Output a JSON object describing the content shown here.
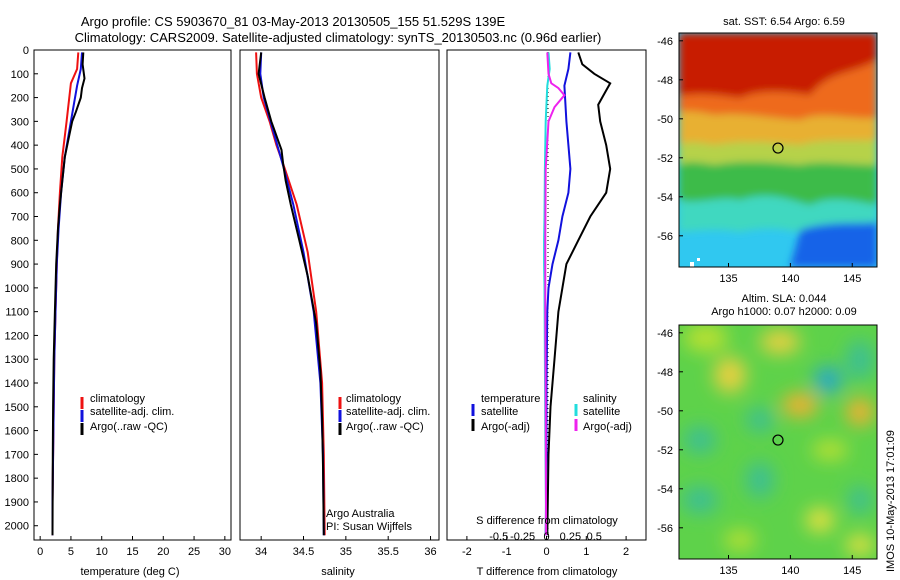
{
  "titles": {
    "line1": "Argo profile: CS 5903670_81 03-May-2013 20130505_155 51.529S 139E",
    "line2": "Climatology: CARS2009. Satellite-adjusted climatology: synTS_20130503.nc (0.96d earlier)"
  },
  "colors": {
    "climatology": "#ee1111",
    "satellite": "#1111dd",
    "argo": "#000000",
    "sal_satellite": "#22dddd",
    "sal_argo": "#ee22ee"
  },
  "chart_data": [
    {
      "id": "temperature",
      "type": "line",
      "xlabel": "temperature (deg C)",
      "ylabel": "",
      "xlim": [
        -1,
        31
      ],
      "ylim": [
        2060,
        0
      ],
      "xticks": [
        "0",
        "5",
        "10",
        "15",
        "20",
        "25",
        "30"
      ],
      "xtick_values": [
        0,
        5,
        10,
        15,
        20,
        25,
        30
      ],
      "yticks": [
        "0",
        "100",
        "200",
        "300",
        "400",
        "500",
        "600",
        "700",
        "800",
        "900",
        "1000",
        "1100",
        "1200",
        "1300",
        "1400",
        "1500",
        "1600",
        "1700",
        "1800",
        "1900",
        "2000"
      ],
      "ytick_values": [
        0,
        100,
        200,
        300,
        400,
        500,
        600,
        700,
        800,
        900,
        1000,
        1100,
        1200,
        1300,
        1400,
        1500,
        1600,
        1700,
        1800,
        1900,
        2000
      ],
      "legend": [
        "climatology",
        "satellite-adj. clim.",
        "Argo(..raw -QC)"
      ],
      "series": [
        {
          "name": "climatology",
          "color_key": "climatology",
          "x": [
            6.2,
            6.0,
            5.0,
            4.3,
            3.6,
            3.2,
            2.9,
            2.7,
            2.5,
            2.3,
            2.2,
            2.1,
            2.0,
            2.0
          ],
          "y": [
            10,
            80,
            140,
            300,
            450,
            600,
            750,
            900,
            1100,
            1300,
            1500,
            1700,
            1900,
            2040
          ]
        },
        {
          "name": "satellite-adj. clim.",
          "color_key": "satellite",
          "x": [
            6.8,
            6.6,
            6.0,
            5.0,
            4.0,
            3.4,
            3.0,
            2.7,
            2.5,
            2.3,
            2.2,
            2.1,
            2.0,
            2.0
          ],
          "y": [
            10,
            80,
            150,
            300,
            450,
            600,
            750,
            900,
            1100,
            1300,
            1500,
            1700,
            1900,
            2040
          ]
        },
        {
          "name": "Argo(..raw -QC)",
          "color_key": "argo",
          "x": [
            7.0,
            6.9,
            7.2,
            6.8,
            6.6,
            5.8,
            5.2,
            4.8,
            4.0,
            3.6,
            3.2,
            2.9,
            2.6,
            2.4,
            2.2,
            2.1,
            2.05,
            2.0
          ],
          "y": [
            10,
            60,
            120,
            160,
            200,
            260,
            300,
            350,
            450,
            550,
            650,
            750,
            900,
            1100,
            1300,
            1500,
            1700,
            2040
          ]
        }
      ]
    },
    {
      "id": "salinity",
      "type": "line",
      "xlabel": "salinity",
      "xlim": [
        33.75,
        36.1
      ],
      "ylim": [
        2060,
        0
      ],
      "xticks": [
        "34",
        "34.5",
        "35",
        "35.5",
        "36"
      ],
      "xtick_values": [
        34,
        34.5,
        35,
        35.5,
        36
      ],
      "legend": [
        "climatology",
        "satellite-adj. clim.",
        "Argo(..raw -QC)"
      ],
      "annotations": [
        "Argo Australia",
        "PI: Susan Wijffels"
      ],
      "series": [
        {
          "name": "climatology",
          "color_key": "climatology",
          "x": [
            33.94,
            33.95,
            34.0,
            34.1,
            34.18,
            34.28,
            34.42,
            34.55,
            34.65,
            34.72,
            34.74,
            34.75
          ],
          "y": [
            10,
            100,
            200,
            300,
            400,
            500,
            650,
            850,
            1100,
            1400,
            1700,
            2040
          ]
        },
        {
          "name": "satellite-adj. clim.",
          "color_key": "satellite",
          "x": [
            34.0,
            33.99,
            34.03,
            34.11,
            34.19,
            34.27,
            34.38,
            34.5,
            34.62,
            34.7,
            34.73,
            34.74
          ],
          "y": [
            10,
            100,
            200,
            300,
            400,
            500,
            650,
            850,
            1100,
            1400,
            1700,
            2040
          ]
        },
        {
          "name": "Argo(..raw -QC)",
          "color_key": "argo",
          "x": [
            34.0,
            33.97,
            34.04,
            34.12,
            34.2,
            34.24,
            34.26,
            34.29,
            34.35,
            34.45,
            34.55,
            34.65,
            34.7,
            34.72,
            34.73,
            34.74
          ],
          "y": [
            10,
            100,
            200,
            300,
            380,
            420,
            480,
            550,
            650,
            800,
            950,
            1150,
            1350,
            1550,
            1750,
            2040
          ]
        }
      ]
    },
    {
      "id": "differences",
      "type": "line",
      "xlabel": "T difference from climatology",
      "xlabel_top": "S difference from climatology",
      "xlim": [
        -2.5,
        2.5
      ],
      "ylim": [
        2060,
        0
      ],
      "xticks": [
        "-2",
        "-1",
        "0",
        "1",
        "2"
      ],
      "xtick_values": [
        -2,
        -1,
        0,
        1,
        2
      ],
      "sticks": [
        "-0.5",
        "-0.25",
        "0",
        "0.25",
        "0.5"
      ],
      "stick_values": [
        -0.5,
        -0.25,
        0,
        0.25,
        0.5
      ],
      "legend_left_title": "temperature",
      "legend_right_title": "salinity",
      "legend_left": [
        "satellite",
        "Argo(-adj)"
      ],
      "legend_right": [
        "satellite",
        "Argo(-adj)"
      ],
      "series": [
        {
          "name": "temperature satellite",
          "color_key": "satellite",
          "x": [
            0.6,
            0.55,
            0.45,
            0.5,
            0.55,
            0.6,
            0.55,
            0.4,
            0.3,
            0.15,
            0.05,
            0.02,
            0.0,
            0.0,
            -0.02
          ],
          "y": [
            10,
            80,
            150,
            300,
            400,
            500,
            600,
            700,
            800,
            900,
            1000,
            1100,
            1400,
            1700,
            2040
          ]
        },
        {
          "name": "temperature Argo(-adj)",
          "color_key": "argo",
          "x": [
            0.8,
            0.9,
            1.2,
            1.6,
            1.5,
            1.3,
            1.35,
            1.5,
            1.6,
            1.5,
            1.1,
            0.8,
            0.5,
            0.4,
            0.3,
            0.2,
            0.1,
            0.05,
            0.02
          ],
          "y": [
            10,
            60,
            100,
            140,
            170,
            230,
            300,
            400,
            500,
            600,
            700,
            800,
            900,
            1000,
            1100,
            1300,
            1500,
            1700,
            2040
          ]
        },
        {
          "name": "salinity satellite",
          "color_key": "sal_satellite",
          "x": [
            0.05,
            0.08,
            0.02,
            -0.02,
            -0.04,
            -0.05,
            -0.06,
            -0.06,
            -0.05,
            -0.04,
            -0.03,
            -0.02,
            -0.01
          ],
          "y": [
            10,
            80,
            150,
            300,
            500,
            700,
            800,
            900,
            1000,
            1300,
            1600,
            1800,
            2040
          ]
        },
        {
          "name": "salinity Argo(-adj)",
          "color_key": "sal_argo",
          "x": [
            0.02,
            0.05,
            0.12,
            0.3,
            0.45,
            0.2,
            0.05,
            -0.02,
            -0.03,
            -0.03,
            -0.02,
            -0.01
          ],
          "y": [
            10,
            100,
            140,
            160,
            190,
            240,
            300,
            500,
            800,
            1100,
            1500,
            2040
          ]
        }
      ]
    },
    {
      "id": "sst-map",
      "type": "heatmap",
      "title": "sat. SST: 6.54  Argo: 6.59",
      "xlim": [
        131,
        147
      ],
      "ylim": [
        -57.6,
        -45.6
      ],
      "xticks": [
        "135",
        "140",
        "145"
      ],
      "xtick_values": [
        135,
        140,
        145
      ],
      "yticks": [
        "-46",
        "-48",
        "-50",
        "-52",
        "-54",
        "-56"
      ],
      "ytick_values": [
        -46,
        -48,
        -50,
        -52,
        -54,
        -56
      ],
      "argo_position": [
        139,
        -51.5
      ]
    },
    {
      "id": "sla-map",
      "type": "heatmap",
      "title_line1": "Altim. SLA: 0.044",
      "title_line2": "Argo h1000: 0.07 h2000: 0.09",
      "xlim": [
        131,
        147
      ],
      "ylim": [
        -57.6,
        -45.6
      ],
      "xticks": [
        "135",
        "140",
        "145"
      ],
      "xtick_values": [
        135,
        140,
        145
      ],
      "yticks": [
        "-46",
        "-48",
        "-50",
        "-52",
        "-54",
        "-56"
      ],
      "ytick_values": [
        -46,
        -48,
        -50,
        -52,
        -54,
        -56
      ],
      "argo_position": [
        139,
        -51.5
      ]
    }
  ],
  "credit": "IMOS 10-May-2013 17:01:09"
}
